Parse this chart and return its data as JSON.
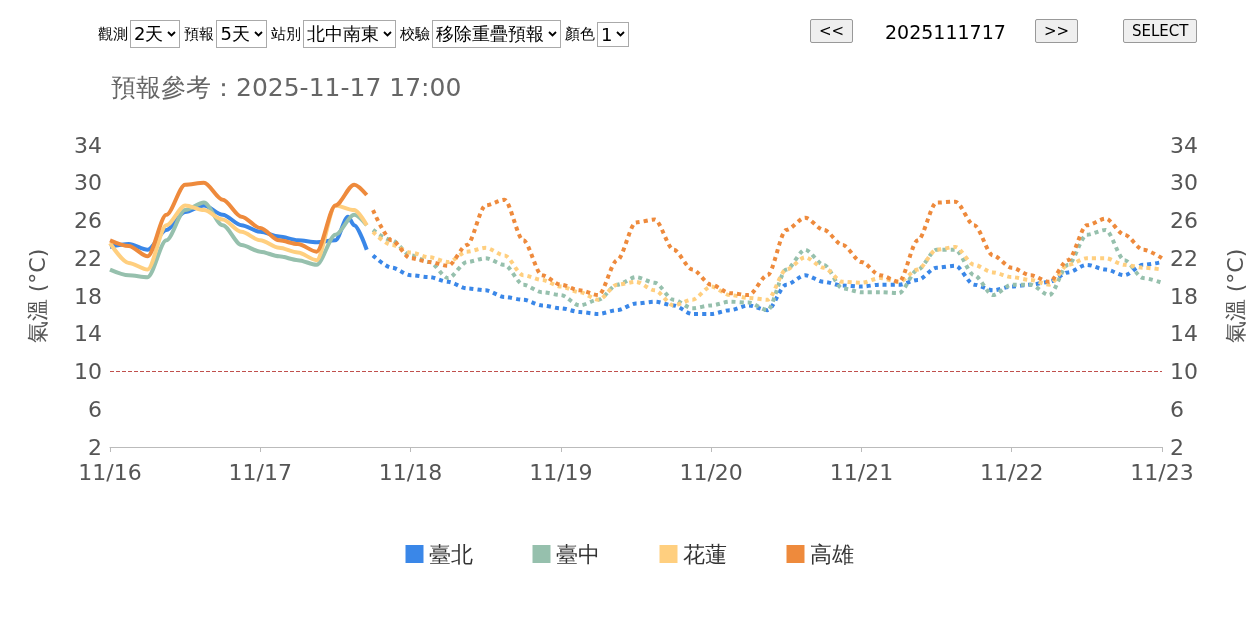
{
  "chart_data": {
    "type": "line",
    "title": "預報參考：2025-11-17 17:00",
    "ylabel": "氣溫 (°C)",
    "y2label": "氣溫 (°C)",
    "annotations": [
      "觀測",
      "2天",
      "預報",
      "5天",
      "站別",
      "北中南東",
      "校驗",
      "移除重疊預報",
      "顏色",
      "1",
      "<<",
      "2025111717",
      ">>",
      "SELECT"
    ],
    "xlim": [
      "2025-11-16",
      "2025-11-23"
    ],
    "xticks": [
      {
        "value": "2025-11-16",
        "label": "11/16"
      },
      {
        "value": "2025-11-17",
        "label": "11/17"
      },
      {
        "value": "2025-11-18",
        "label": "11/18"
      },
      {
        "value": "2025-11-19",
        "label": "11/19"
      },
      {
        "value": "2025-11-20",
        "label": "11/20"
      },
      {
        "value": "2025-11-21",
        "label": "11/21"
      },
      {
        "value": "2025-11-22",
        "label": "11/22"
      },
      {
        "value": "2025-11-23",
        "label": "11/23"
      }
    ],
    "ylim": [
      2,
      34
    ],
    "yticks": [
      2,
      6,
      10,
      14,
      18,
      22,
      26,
      30,
      34
    ],
    "y2lim": [
      2,
      34
    ],
    "y2ticks": [
      2,
      6,
      10,
      14,
      18,
      22,
      26,
      30,
      34
    ],
    "grid": false,
    "legend": "bottom",
    "marker": "none",
    "ref_lines": [
      {
        "axis": "y",
        "value": 10,
        "label": null,
        "color": "#c0504d",
        "line_style": "dashed"
      }
    ],
    "series": [
      {
        "name": "臺北",
        "color": "#3a87e8",
        "line_style": "solid",
        "x": [
          "2025-11-16T00:00",
          "2025-11-16T03:00",
          "2025-11-16T06:00",
          "2025-11-16T09:00",
          "2025-11-16T12:00",
          "2025-11-16T15:00",
          "2025-11-16T18:00",
          "2025-11-16T21:00",
          "2025-11-17T00:00",
          "2025-11-17T03:00",
          "2025-11-17T06:00",
          "2025-11-17T09:00",
          "2025-11-17T12:00",
          "2025-11-17T14:00",
          "2025-11-17T15:00",
          "2025-11-17T17:00"
        ],
        "values": [
          23.2,
          23.5,
          22.9,
          25.0,
          26.9,
          27.6,
          26.6,
          25.5,
          24.8,
          24.3,
          23.9,
          23.7,
          23.9,
          26.4,
          25.5,
          22.9
        ]
      },
      {
        "name": "臺中",
        "color": "#96c0ad",
        "line_style": "solid",
        "x": [
          "2025-11-16T00:00",
          "2025-11-16T03:00",
          "2025-11-16T06:00",
          "2025-11-16T09:00",
          "2025-11-16T12:00",
          "2025-11-16T15:00",
          "2025-11-16T18:00",
          "2025-11-16T21:00",
          "2025-11-17T00:00",
          "2025-11-17T03:00",
          "2025-11-17T06:00",
          "2025-11-17T09:00",
          "2025-11-17T12:00",
          "2025-11-17T15:00",
          "2025-11-17T17:00"
        ],
        "values": [
          20.8,
          20.2,
          20.0,
          23.9,
          27.1,
          27.9,
          25.5,
          23.4,
          22.7,
          22.2,
          21.8,
          21.3,
          24.5,
          26.6,
          25.5
        ]
      },
      {
        "name": "花蓮",
        "color": "#ffcf7f",
        "line_style": "solid",
        "x": [
          "2025-11-16T00:00",
          "2025-11-16T03:00",
          "2025-11-16T06:00",
          "2025-11-16T09:00",
          "2025-11-16T12:00",
          "2025-11-16T15:00",
          "2025-11-16T18:00",
          "2025-11-16T21:00",
          "2025-11-17T00:00",
          "2025-11-17T03:00",
          "2025-11-17T06:00",
          "2025-11-17T09:00",
          "2025-11-17T12:00",
          "2025-11-17T15:00",
          "2025-11-17T17:00"
        ],
        "values": [
          23.6,
          21.5,
          20.8,
          25.5,
          27.6,
          27.1,
          26.1,
          24.8,
          23.9,
          23.1,
          22.6,
          21.8,
          27.6,
          27.1,
          25.5
        ]
      },
      {
        "name": "高雄",
        "color": "#ee8a3c",
        "line_style": "solid",
        "x": [
          "2025-11-16T00:00",
          "2025-11-16T03:00",
          "2025-11-16T06:00",
          "2025-11-16T09:00",
          "2025-11-16T12:00",
          "2025-11-16T15:00",
          "2025-11-16T18:00",
          "2025-11-16T21:00",
          "2025-11-17T00:00",
          "2025-11-17T03:00",
          "2025-11-17T06:00",
          "2025-11-17T09:00",
          "2025-11-17T12:00",
          "2025-11-17T15:00",
          "2025-11-17T17:00"
        ],
        "values": [
          23.9,
          23.3,
          22.2,
          26.6,
          29.8,
          30.0,
          28.2,
          26.4,
          25.2,
          23.9,
          23.5,
          22.7,
          27.6,
          29.8,
          28.7
        ]
      },
      {
        "color": "#3a87e8",
        "line_style": "dotted",
        "x": [
          "2025-11-17T18:00",
          "2025-11-17T21:00",
          "2025-11-18T00:00",
          "2025-11-18T03:00",
          "2025-11-18T06:00",
          "2025-11-18T09:00",
          "2025-11-18T12:00",
          "2025-11-18T15:00",
          "2025-11-18T18:00",
          "2025-11-18T21:00",
          "2025-11-19T00:00",
          "2025-11-19T03:00",
          "2025-11-19T06:00",
          "2025-11-19T09:00",
          "2025-11-19T12:00",
          "2025-11-19T15:00",
          "2025-11-19T18:00",
          "2025-11-19T21:00",
          "2025-11-20T00:00",
          "2025-11-20T03:00",
          "2025-11-20T06:00",
          "2025-11-20T09:00",
          "2025-11-20T12:00",
          "2025-11-20T15:00",
          "2025-11-20T18:00",
          "2025-11-20T21:00",
          "2025-11-21T00:00",
          "2025-11-21T03:00",
          "2025-11-21T06:00",
          "2025-11-21T09:00",
          "2025-11-21T12:00",
          "2025-11-21T15:00",
          "2025-11-21T18:00",
          "2025-11-21T21:00",
          "2025-11-22T00:00",
          "2025-11-22T03:00",
          "2025-11-22T06:00",
          "2025-11-22T09:00",
          "2025-11-22T12:00",
          "2025-11-22T15:00",
          "2025-11-22T18:00",
          "2025-11-22T21:00",
          "2025-11-23T00:00"
        ],
        "values": [
          22.3,
          21.0,
          20.2,
          20.0,
          19.5,
          18.8,
          18.6,
          17.9,
          17.6,
          17.0,
          16.7,
          16.3,
          16.1,
          16.5,
          17.2,
          17.4,
          17.0,
          16.1,
          16.1,
          16.5,
          17.0,
          16.5,
          19.2,
          20.2,
          19.5,
          19.1,
          19.0,
          19.2,
          19.2,
          19.7,
          21.0,
          21.2,
          19.2,
          18.6,
          19.0,
          19.2,
          19.5,
          20.5,
          21.3,
          20.8,
          20.2,
          21.3,
          21.6
        ]
      },
      {
        "color": "#96c0ad",
        "line_style": "dotted",
        "x": [
          "2025-11-17T18:00",
          "2025-11-17T21:00",
          "2025-11-18T00:00",
          "2025-11-18T03:00",
          "2025-11-18T06:00",
          "2025-11-18T09:00",
          "2025-11-18T12:00",
          "2025-11-18T15:00",
          "2025-11-18T18:00",
          "2025-11-18T21:00",
          "2025-11-19T00:00",
          "2025-11-19T03:00",
          "2025-11-19T06:00",
          "2025-11-19T09:00",
          "2025-11-19T12:00",
          "2025-11-19T15:00",
          "2025-11-19T18:00",
          "2025-11-19T21:00",
          "2025-11-20T00:00",
          "2025-11-20T03:00",
          "2025-11-20T06:00",
          "2025-11-20T09:00",
          "2025-11-20T12:00",
          "2025-11-20T15:00",
          "2025-11-20T18:00",
          "2025-11-20T21:00",
          "2025-11-21T00:00",
          "2025-11-21T03:00",
          "2025-11-21T06:00",
          "2025-11-21T09:00",
          "2025-11-21T12:00",
          "2025-11-21T15:00",
          "2025-11-21T18:00",
          "2025-11-21T21:00",
          "2025-11-22T00:00",
          "2025-11-22T03:00",
          "2025-11-22T06:00",
          "2025-11-22T09:00",
          "2025-11-22T12:00",
          "2025-11-22T15:00",
          "2025-11-22T18:00",
          "2025-11-22T21:00",
          "2025-11-23T00:00"
        ],
        "values": [
          25.0,
          23.9,
          22.3,
          21.6,
          19.9,
          21.6,
          22.0,
          21.3,
          19.2,
          18.4,
          18.1,
          17.0,
          17.6,
          19.2,
          20.0,
          19.4,
          17.6,
          16.7,
          17.0,
          17.4,
          17.3,
          16.5,
          20.8,
          22.9,
          21.3,
          18.8,
          18.4,
          18.4,
          18.3,
          20.8,
          22.9,
          22.9,
          20.2,
          18.1,
          19.2,
          19.2,
          18.1,
          21.3,
          24.5,
          25.0,
          21.8,
          19.9,
          19.4
        ]
      },
      {
        "color": "#ffcf7f",
        "line_style": "dotted",
        "x": [
          "2025-11-17T18:00",
          "2025-11-17T21:00",
          "2025-11-18T00:00",
          "2025-11-18T03:00",
          "2025-11-18T06:00",
          "2025-11-18T09:00",
          "2025-11-18T12:00",
          "2025-11-18T15:00",
          "2025-11-18T18:00",
          "2025-11-18T21:00",
          "2025-11-19T00:00",
          "2025-11-19T03:00",
          "2025-11-19T06:00",
          "2025-11-19T09:00",
          "2025-11-19T12:00",
          "2025-11-19T15:00",
          "2025-11-19T18:00",
          "2025-11-19T21:00",
          "2025-11-20T00:00",
          "2025-11-20T03:00",
          "2025-11-20T06:00",
          "2025-11-20T09:00",
          "2025-11-20T12:00",
          "2025-11-20T15:00",
          "2025-11-20T18:00",
          "2025-11-20T21:00",
          "2025-11-21T00:00",
          "2025-11-21T03:00",
          "2025-11-21T06:00",
          "2025-11-21T09:00",
          "2025-11-21T12:00",
          "2025-11-21T15:00",
          "2025-11-21T18:00",
          "2025-11-21T21:00",
          "2025-11-22T00:00",
          "2025-11-22T03:00",
          "2025-11-22T06:00",
          "2025-11-22T09:00",
          "2025-11-22T12:00",
          "2025-11-22T15:00",
          "2025-11-22T18:00",
          "2025-11-22T21:00",
          "2025-11-23T00:00"
        ],
        "values": [
          24.8,
          23.4,
          22.6,
          22.1,
          21.6,
          22.7,
          23.1,
          22.3,
          20.2,
          19.7,
          19.0,
          18.4,
          17.6,
          19.2,
          19.5,
          18.6,
          17.0,
          17.6,
          19.0,
          18.1,
          17.8,
          17.6,
          20.8,
          22.1,
          21.0,
          19.5,
          19.4,
          19.9,
          19.5,
          20.8,
          22.9,
          23.2,
          21.3,
          20.5,
          20.0,
          19.7,
          19.2,
          21.3,
          22.0,
          22.0,
          21.3,
          21.0,
          20.8
        ]
      },
      {
        "color": "#ee8a3c",
        "line_style": "dotted",
        "x": [
          "2025-11-17T18:00",
          "2025-11-17T21:00",
          "2025-11-18T00:00",
          "2025-11-18T03:00",
          "2025-11-18T06:00",
          "2025-11-18T09:00",
          "2025-11-18T12:00",
          "2025-11-18T15:00",
          "2025-11-18T18:00",
          "2025-11-18T21:00",
          "2025-11-19T00:00",
          "2025-11-19T03:00",
          "2025-11-19T06:00",
          "2025-11-19T09:00",
          "2025-11-19T12:00",
          "2025-11-19T15:00",
          "2025-11-19T18:00",
          "2025-11-19T21:00",
          "2025-11-20T00:00",
          "2025-11-20T03:00",
          "2025-11-20T06:00",
          "2025-11-20T09:00",
          "2025-11-20T12:00",
          "2025-11-20T15:00",
          "2025-11-20T18:00",
          "2025-11-20T21:00",
          "2025-11-21T00:00",
          "2025-11-21T03:00",
          "2025-11-21T06:00",
          "2025-11-21T09:00",
          "2025-11-21T12:00",
          "2025-11-21T15:00",
          "2025-11-21T18:00",
          "2025-11-21T21:00",
          "2025-11-22T00:00",
          "2025-11-22T03:00",
          "2025-11-22T06:00",
          "2025-11-22T09:00",
          "2025-11-22T12:00",
          "2025-11-22T15:00",
          "2025-11-22T18:00",
          "2025-11-22T21:00",
          "2025-11-23T00:00"
        ],
        "values": [
          27.1,
          23.9,
          22.0,
          21.6,
          21.2,
          23.4,
          27.6,
          28.2,
          23.9,
          20.2,
          19.2,
          18.6,
          18.1,
          21.8,
          25.8,
          26.1,
          22.9,
          20.8,
          19.2,
          18.3,
          18.1,
          20.2,
          25.0,
          26.3,
          25.0,
          23.4,
          21.6,
          20.2,
          19.5,
          23.9,
          27.9,
          28.0,
          25.5,
          22.3,
          21.0,
          20.2,
          19.5,
          21.8,
          25.5,
          26.2,
          24.5,
          22.9,
          22.0
        ]
      }
    ]
  }
}
